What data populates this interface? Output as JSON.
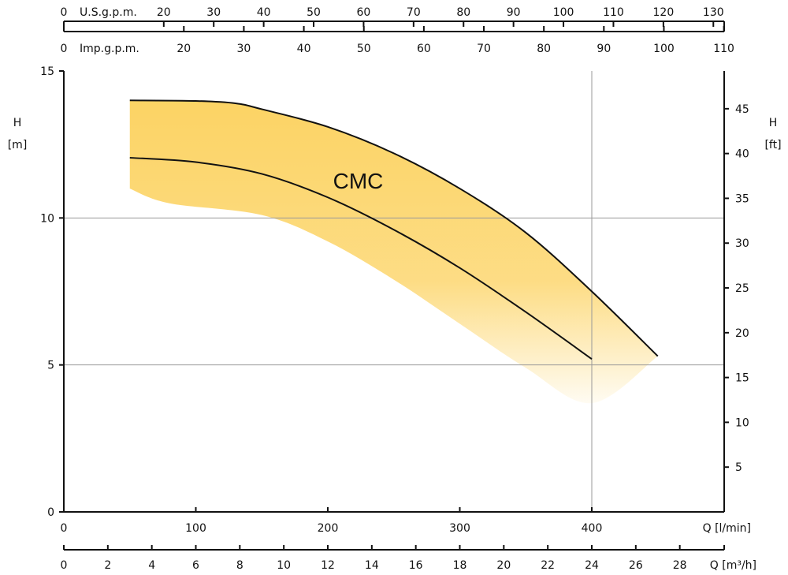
{
  "chart_data": {
    "type": "area",
    "title": "",
    "label": "CMC",
    "colors": {
      "band": "#fcd15c",
      "line": "#111111",
      "grid": "#999999"
    },
    "xlim": [
      0,
      500
    ],
    "ylim": [
      0,
      15
    ],
    "x_axis": {
      "label": "Q [l/min]",
      "ticks": [
        0,
        100,
        200,
        300,
        400
      ]
    },
    "y_axis": {
      "title": "H",
      "unit": "[m]",
      "ticks": [
        0,
        5,
        10,
        15
      ]
    },
    "y2_axis": {
      "title": "H",
      "unit": "[ft]",
      "ticks": [
        5,
        10,
        15,
        20,
        25,
        30,
        35,
        40,
        45
      ]
    },
    "x2_axis": {
      "label": "Q [m³/h]",
      "ticks": [
        0,
        2,
        4,
        6,
        8,
        10,
        12,
        14,
        16,
        18,
        20,
        22,
        24,
        26,
        28
      ]
    },
    "top_axis_us": {
      "label": "U.S.g.p.m.",
      "ticks": [
        0,
        20,
        30,
        40,
        50,
        60,
        70,
        80,
        90,
        100,
        110,
        120,
        130
      ]
    },
    "top_axis_imp": {
      "label": "Imp.g.p.m.",
      "ticks": [
        0,
        20,
        30,
        40,
        50,
        60,
        70,
        80,
        90,
        100,
        110
      ]
    },
    "grid": {
      "h": [
        5,
        10
      ],
      "v": [
        400
      ]
    },
    "series": [
      {
        "name": "",
        "role": "upper",
        "x": [
          50,
          100,
          130,
          150,
          200,
          250,
          300,
          350,
          400,
          450
        ],
        "y": [
          14.0,
          13.98,
          13.9,
          13.7,
          13.1,
          12.2,
          11.0,
          9.5,
          7.5,
          5.3
        ]
      },
      {
        "name": "",
        "role": "lower",
        "x": [
          50,
          100,
          150,
          200,
          250,
          300,
          350,
          400
        ],
        "y": [
          12.05,
          11.9,
          11.5,
          10.7,
          9.6,
          8.3,
          6.8,
          5.2
        ]
      }
    ],
    "band_lower_edge": {
      "x": [
        50,
        80,
        150,
        200,
        250,
        300,
        350,
        400,
        450
      ],
      "y": [
        11.0,
        10.5,
        10.1,
        9.2,
        7.9,
        6.4,
        4.9,
        3.7,
        5.3
      ]
    }
  }
}
